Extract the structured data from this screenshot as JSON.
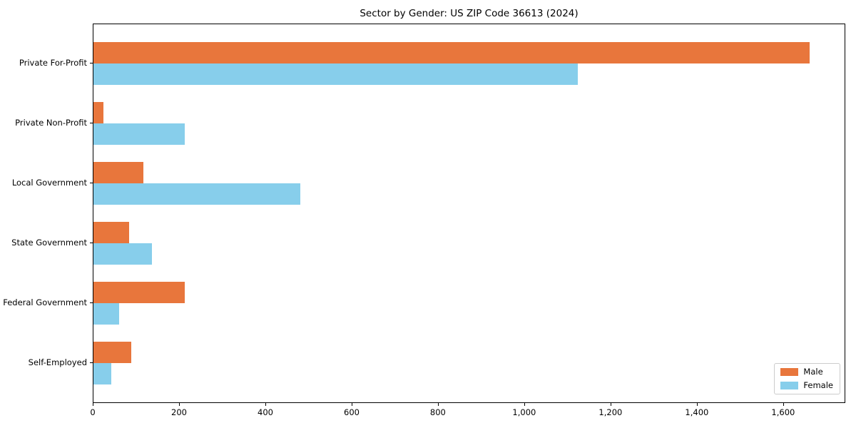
{
  "chart_data": {
    "type": "bar",
    "orientation": "horizontal",
    "title": "Sector by Gender: US ZIP Code 36613 (2024)",
    "categories": [
      "Private For-Profit",
      "Private Non-Profit",
      "Local Government",
      "State Government",
      "Federal Government",
      "Self-Employed"
    ],
    "series": [
      {
        "name": "Male",
        "color": "#E8763C",
        "values": [
          1660,
          23,
          116,
          83,
          212,
          88
        ]
      },
      {
        "name": "Female",
        "color": "#87CEEB",
        "values": [
          1122,
          212,
          479,
          135,
          60,
          41
        ]
      }
    ],
    "xlim": [
      0,
      1744
    ],
    "xticks": [
      {
        "value": 0,
        "label": "0"
      },
      {
        "value": 200,
        "label": "200"
      },
      {
        "value": 400,
        "label": "400"
      },
      {
        "value": 600,
        "label": "600"
      },
      {
        "value": 800,
        "label": "800"
      },
      {
        "value": 1000,
        "label": "1,000"
      },
      {
        "value": 1200,
        "label": "1,200"
      },
      {
        "value": 1400,
        "label": "1,400"
      },
      {
        "value": 1600,
        "label": "1,600"
      }
    ],
    "grid": false,
    "legend_position": "lower right"
  }
}
